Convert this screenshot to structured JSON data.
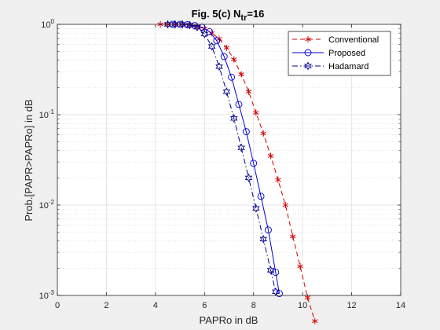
{
  "chart_data": {
    "type": "line",
    "title": "Fig. 5(c) N",
    "title_subscript": "tr",
    "title_suffix": "=16",
    "xlabel": "PAPRo in dB",
    "ylabel": "Prob.[PAPR>PAPRo] in dB",
    "xlim": [
      0,
      14
    ],
    "ylim": [
      0.001,
      1
    ],
    "yscale": "log",
    "grid": true,
    "minor_grid": true,
    "legend_position": "top-right",
    "x_ticks": [
      0,
      2,
      4,
      6,
      8,
      10,
      12,
      14
    ],
    "x_tick_labels": [
      "0",
      "2",
      "4",
      "6",
      "8",
      "10",
      "12",
      "14"
    ],
    "y_ticks": [
      1,
      0.1,
      0.01,
      0.001
    ],
    "y_tick_labels": [
      {
        "base": "10",
        "exp": "0"
      },
      {
        "base": "10",
        "exp": "-1"
      },
      {
        "base": "10",
        "exp": "-2"
      },
      {
        "base": "10",
        "exp": "-3"
      }
    ],
    "series": [
      {
        "name": "Conventional",
        "color": "#d40000",
        "line_style": "dashed",
        "marker": "asterisk",
        "x": [
          4.2,
          4.5,
          4.8,
          5.1,
          5.4,
          5.7,
          6.0,
          6.3,
          6.6,
          6.9,
          7.2,
          7.5,
          7.8,
          8.1,
          8.4,
          8.7,
          9.0,
          9.3,
          9.6,
          9.9,
          10.2,
          10.5
        ],
        "y": [
          1.0,
          1.0,
          1.0,
          1.0,
          0.98,
          0.95,
          0.9,
          0.8,
          0.69,
          0.55,
          0.41,
          0.28,
          0.18,
          0.105,
          0.062,
          0.035,
          0.019,
          0.01,
          0.0045,
          0.0021,
          0.00095,
          0.00052
        ]
      },
      {
        "name": "Proposed",
        "color": "#0000d4",
        "line_style": "solid",
        "marker": "circle",
        "x": [
          4.7,
          5.0,
          5.3,
          5.6,
          5.9,
          6.2,
          6.5,
          6.8,
          7.1,
          7.4,
          7.7,
          8.0,
          8.3,
          8.6,
          8.9,
          9.05
        ],
        "y": [
          1.0,
          1.0,
          0.99,
          0.97,
          0.93,
          0.83,
          0.66,
          0.44,
          0.26,
          0.13,
          0.065,
          0.029,
          0.0125,
          0.0053,
          0.0018,
          0.00105
        ]
      },
      {
        "name": "Hadamard",
        "color": "#00008b",
        "line_style": "dashdot",
        "marker": "hexagram",
        "x": [
          4.5,
          4.8,
          5.1,
          5.4,
          5.7,
          6.0,
          6.3,
          6.6,
          6.9,
          7.2,
          7.5,
          7.8,
          8.1,
          8.4,
          8.7,
          8.9
        ],
        "y": [
          1.0,
          1.0,
          1.0,
          0.98,
          0.93,
          0.78,
          0.57,
          0.34,
          0.18,
          0.091,
          0.043,
          0.02,
          0.0092,
          0.0042,
          0.0019,
          0.0011
        ]
      }
    ]
  }
}
